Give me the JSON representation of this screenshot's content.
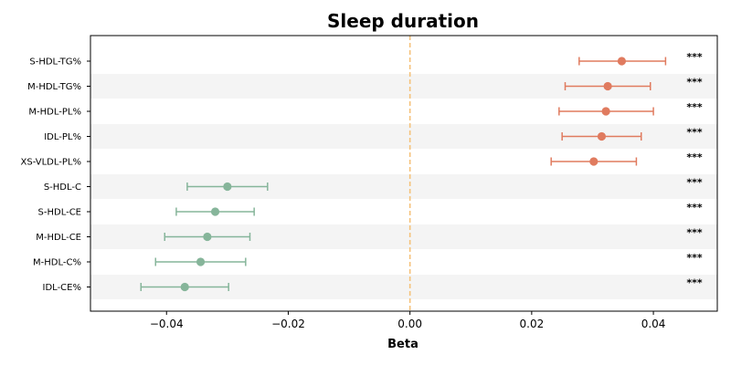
{
  "chart_data": {
    "type": "scatter",
    "subtype": "forest-plot",
    "title": "Sleep duration",
    "xlabel": "Beta",
    "ylabel": "",
    "xlim": [
      -0.0525,
      0.0505
    ],
    "xticks": [
      -0.04,
      -0.02,
      0.0,
      0.02,
      0.04
    ],
    "xtick_labels": [
      "−0.04",
      "−0.02",
      "0.00",
      "0.02",
      "0.04"
    ],
    "reference_line": {
      "x": 0.0,
      "style": "dashed",
      "color": "#f5c27a"
    },
    "grid": false,
    "row_shading": "alternating",
    "colors": {
      "positive": "#e07b5f",
      "negative": "#86b59a",
      "shade": "#f4f4f4"
    },
    "categories": [
      "S-HDL-TG%",
      "M-HDL-TG%",
      "M-HDL-PL%",
      "IDL-PL%",
      "XS-VLDL-PL%",
      "S-HDL-C",
      "S-HDL-CE",
      "M-HDL-CE",
      "M-HDL-C%",
      "IDL-CE%"
    ],
    "estimates": [
      0.0348,
      0.0325,
      0.0322,
      0.0315,
      0.0302,
      -0.03,
      -0.032,
      -0.0333,
      -0.0344,
      -0.037
    ],
    "ci_low": [
      0.0278,
      0.0255,
      0.0245,
      0.025,
      0.0232,
      -0.0366,
      -0.0384,
      -0.0403,
      -0.0418,
      -0.0442
    ],
    "ci_high": [
      0.042,
      0.0395,
      0.04,
      0.038,
      0.0372,
      -0.0234,
      -0.0256,
      -0.0263,
      -0.027,
      -0.0298
    ],
    "significance": [
      "***",
      "***",
      "***",
      "***",
      "***",
      "***",
      "***",
      "***",
      "***",
      "***"
    ]
  }
}
